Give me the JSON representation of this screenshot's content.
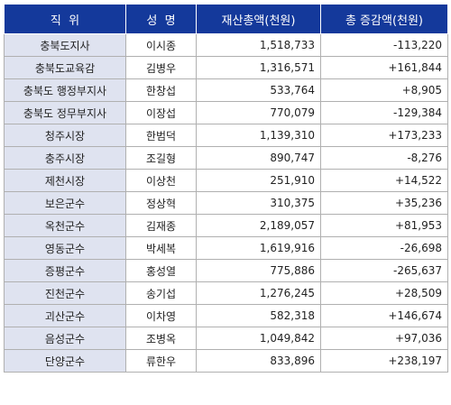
{
  "header": {
    "title": "직  위",
    "name": "성  명",
    "total": "재산총액(천원)",
    "change": "총 증감액(천원)"
  },
  "rows": [
    {
      "title": "충북도지사",
      "name": "이시종",
      "total": "1,518,733",
      "change": "-113,220"
    },
    {
      "title": "충북도교육감",
      "name": "김병우",
      "total": "1,316,571",
      "change": "+161,844"
    },
    {
      "title": "충북도 행정부지사",
      "name": "한창섭",
      "total": "533,764",
      "change": "+8,905"
    },
    {
      "title": "충북도 정무부지사",
      "name": "이장섭",
      "total": "770,079",
      "change": "-129,384"
    },
    {
      "title": "청주시장",
      "name": "한범덕",
      "total": "1,139,310",
      "change": "+173,233"
    },
    {
      "title": "충주시장",
      "name": "조길형",
      "total": "890,747",
      "change": "-8,276"
    },
    {
      "title": "제천시장",
      "name": "이상천",
      "total": "251,910",
      "change": "+14,522"
    },
    {
      "title": "보은군수",
      "name": "정상혁",
      "total": "310,375",
      "change": "+35,236"
    },
    {
      "title": "옥천군수",
      "name": "김재종",
      "total": "2,189,057",
      "change": "+81,953"
    },
    {
      "title": "영동군수",
      "name": "박세복",
      "total": "1,619,916",
      "change": "-26,698"
    },
    {
      "title": "증평군수",
      "name": "홍성열",
      "total": "775,886",
      "change": "-265,637"
    },
    {
      "title": "진천군수",
      "name": "송기섭",
      "total": "1,276,245",
      "change": "+28,509"
    },
    {
      "title": "괴산군수",
      "name": "이차영",
      "total": "582,318",
      "change": "+146,674"
    },
    {
      "title": "음성군수",
      "name": "조병옥",
      "total": "1,049,842",
      "change": "+97,036"
    },
    {
      "title": "단양군수",
      "name": "류한우",
      "total": "833,896",
      "change": "+238,197"
    }
  ],
  "colors": {
    "header_bg": "#14399b",
    "title_cell_bg": "#dfe3f0"
  }
}
